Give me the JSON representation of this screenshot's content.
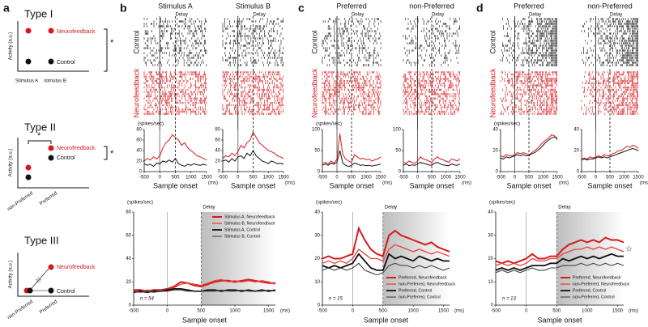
{
  "panel_labels": [
    "a",
    "b",
    "c",
    "d"
  ],
  "schematics": [
    {
      "title": "Type I",
      "y_label": "Activity (a.u.)",
      "x_labels": [
        "Stimulus A",
        "stimulus B"
      ],
      "labels": [
        "Neurofeedback",
        "Control"
      ],
      "marks": [
        "*"
      ]
    },
    {
      "title": "Type II",
      "y_label": "Activity (a.u.)",
      "x_labels": [
        "non-Preferred",
        "Preferred"
      ],
      "labels": [
        "Neurofeedback",
        "Control"
      ],
      "marks": [
        "*",
        "*"
      ]
    },
    {
      "title": "Type III",
      "y_label": "Activity (a.u.)",
      "x_labels": [
        "non-Preferred",
        "Preferred"
      ],
      "labels": [
        "Neurofeedback",
        "Control"
      ],
      "marks": [
        "☆"
      ]
    }
  ],
  "rasters": [
    {
      "columns": [
        "Stimulus A",
        "Stimulus B"
      ],
      "epoch": "Delay",
      "rows": [
        "Control",
        "Neurofeedback"
      ]
    },
    {
      "columns": [
        "Preferred",
        "non-Preferred"
      ],
      "epoch": "Delay",
      "rows": [
        "Control",
        "Neurofeedback"
      ]
    },
    {
      "columns": [
        "Preferred",
        "non-Preferred"
      ],
      "epoch": "Delay",
      "rows": [
        "Control",
        "Neurofeedback"
      ]
    }
  ],
  "chart_data": [
    {
      "type": "line",
      "y_label": "(spikes/sec)",
      "x_label": "Sample onset",
      "x_unit": "(ms)",
      "x": [
        -500,
        -400,
        -300,
        -200,
        -100,
        0,
        100,
        200,
        300,
        400,
        500,
        600,
        700,
        800,
        900,
        1000,
        1100,
        1200,
        1300,
        1400,
        1500
      ],
      "xlim": [
        -500,
        1500
      ],
      "xticks": [
        -500,
        0,
        500,
        1000,
        1500
      ],
      "ylim": [
        0,
        80
      ],
      "yticks": [
        0,
        20,
        40,
        60,
        80
      ],
      "series": [
        {
          "color": "#d7191c",
          "values": [
            20,
            25,
            22,
            28,
            24,
            30,
            45,
            55,
            60,
            70,
            65,
            60,
            50,
            55,
            45,
            40,
            35,
            30,
            28,
            25,
            22
          ]
        },
        {
          "color": "#111111",
          "values": [
            15,
            12,
            14,
            10,
            16,
            15,
            20,
            18,
            22,
            18,
            25,
            15,
            12,
            10,
            14,
            12,
            15,
            13,
            12,
            14,
            12
          ]
        }
      ]
    },
    {
      "type": "line",
      "x_label": "Sample onset",
      "x_unit": "(ms)",
      "x": [
        -500,
        -400,
        -300,
        -200,
        -100,
        0,
        100,
        200,
        300,
        400,
        500,
        600,
        700,
        800,
        900,
        1000,
        1100,
        1200,
        1300,
        1400,
        1500
      ],
      "xlim": [
        -500,
        1500
      ],
      "xticks": [
        -500,
        0,
        500,
        1000,
        1500
      ],
      "ylim": [
        0,
        80
      ],
      "yticks": [
        0,
        20,
        40,
        60,
        80
      ],
      "series": [
        {
          "color": "#d7191c",
          "values": [
            25,
            30,
            28,
            35,
            30,
            38,
            50,
            45,
            55,
            60,
            75,
            65,
            55,
            50,
            45,
            40,
            38,
            35,
            30,
            28,
            25
          ]
        },
        {
          "color": "#111111",
          "values": [
            20,
            22,
            18,
            25,
            20,
            28,
            30,
            25,
            35,
            30,
            40,
            30,
            25,
            20,
            18,
            15,
            20,
            18,
            15,
            16,
            14
          ]
        }
      ]
    },
    {
      "type": "line",
      "y_label": "(spikes/sec)",
      "x_label": "Sample onset",
      "x_unit": "(ms)",
      "x": [
        -500,
        -400,
        -300,
        -200,
        -100,
        0,
        100,
        200,
        300,
        400,
        500,
        600,
        700,
        800,
        900,
        1000,
        1100,
        1200,
        1300,
        1400,
        1500
      ],
      "xlim": [
        -500,
        1500
      ],
      "xticks": [
        -500,
        0,
        500,
        1000,
        1500
      ],
      "ylim": [
        0,
        100
      ],
      "yticks": [
        0,
        50,
        100
      ],
      "series": [
        {
          "color": "#d7191c",
          "values": [
            20,
            22,
            18,
            25,
            20,
            30,
            90,
            40,
            30,
            25,
            22,
            40,
            35,
            30,
            32,
            28,
            30,
            25,
            28,
            30,
            35
          ]
        },
        {
          "color": "#111111",
          "values": [
            15,
            18,
            15,
            20,
            18,
            22,
            50,
            20,
            15,
            12,
            15,
            20,
            18,
            15,
            16,
            14,
            15,
            13,
            15,
            16,
            18
          ]
        }
      ]
    },
    {
      "type": "line",
      "x_label": "Sample onset",
      "x_unit": "(ms)",
      "x": [
        -500,
        -400,
        -300,
        -200,
        -100,
        0,
        100,
        200,
        300,
        400,
        500,
        600,
        700,
        800,
        900,
        1000,
        1100,
        1200,
        1300,
        1400,
        1500
      ],
      "xlim": [
        -500,
        1500
      ],
      "xticks": [
        -500,
        0,
        500,
        1000,
        1500
      ],
      "ylim": [
        0,
        100
      ],
      "yticks": [
        0,
        50,
        100
      ],
      "series": [
        {
          "color": "#d7191c",
          "values": [
            22,
            20,
            25,
            22,
            20,
            25,
            35,
            30,
            28,
            25,
            22,
            30,
            35,
            30,
            28,
            25,
            22,
            30,
            28,
            25,
            30
          ]
        },
        {
          "color": "#111111",
          "values": [
            15,
            18,
            14,
            16,
            15,
            18,
            22,
            20,
            18,
            16,
            15,
            20,
            22,
            18,
            16,
            15,
            14,
            18,
            16,
            15,
            18
          ]
        }
      ]
    },
    {
      "type": "line",
      "y_label": "(spikes/sec)",
      "x_label": "Sample onset",
      "x_unit": "(ms)",
      "x": [
        -500,
        -400,
        -300,
        -200,
        -100,
        0,
        100,
        200,
        300,
        400,
        500,
        600,
        700,
        800,
        900,
        1000,
        1100,
        1200,
        1300,
        1400,
        1500
      ],
      "xlim": [
        -500,
        1500
      ],
      "xticks": [
        -500,
        0,
        500,
        1000,
        1500
      ],
      "ylim": [
        0,
        40
      ],
      "yticks": [
        0,
        20,
        40
      ],
      "series": [
        {
          "color": "#d7191c",
          "values": [
            15,
            14,
            16,
            15,
            15,
            16,
            18,
            17,
            18,
            17,
            16,
            18,
            20,
            22,
            25,
            28,
            30,
            32,
            35,
            34,
            30
          ]
        },
        {
          "color": "#111111",
          "values": [
            13,
            12,
            14,
            13,
            14,
            15,
            16,
            15,
            16,
            15,
            15,
            17,
            18,
            20,
            22,
            25,
            28,
            30,
            32,
            33,
            32
          ]
        }
      ]
    },
    {
      "type": "line",
      "x_label": "Sample onset",
      "x_unit": "(ms)",
      "x": [
        -500,
        -400,
        -300,
        -200,
        -100,
        0,
        100,
        200,
        300,
        400,
        500,
        600,
        700,
        800,
        900,
        1000,
        1100,
        1200,
        1300,
        1400,
        1500
      ],
      "xlim": [
        -500,
        1500
      ],
      "xticks": [
        -500,
        0,
        500,
        1000,
        1500
      ],
      "ylim": [
        0,
        40
      ],
      "yticks": [
        0,
        20,
        40
      ],
      "series": [
        {
          "color": "#d7191c",
          "values": [
            12,
            13,
            12,
            14,
            13,
            14,
            15,
            14,
            16,
            15,
            15,
            17,
            18,
            20,
            20,
            22,
            24,
            23,
            25,
            24,
            22
          ]
        },
        {
          "color": "#111111",
          "values": [
            11,
            12,
            11,
            12,
            12,
            13,
            14,
            13,
            14,
            13,
            14,
            15,
            16,
            17,
            18,
            19,
            20,
            21,
            22,
            21,
            20
          ]
        }
      ]
    },
    {
      "type": "line",
      "y_label": "(spikes/sec)",
      "x_label": "Sample onset",
      "x_unit": "(ms)",
      "legend": "upper right",
      "annotations": {
        "epoch": "Delay",
        "n": "n = 54"
      },
      "x": [
        -500,
        -400,
        -300,
        -200,
        -100,
        0,
        100,
        200,
        300,
        400,
        500,
        600,
        700,
        800,
        900,
        1000,
        1100,
        1200,
        1300,
        1400,
        1500,
        1600
      ],
      "xlim": [
        -500,
        1600
      ],
      "xticks": [
        -500,
        0,
        500,
        1000,
        1500
      ],
      "ylim": [
        0,
        80
      ],
      "yticks": [
        0,
        20,
        40,
        60,
        80
      ],
      "series": [
        {
          "name": "Stimulus A, Neurofeedback",
          "color": "#d7191c",
          "values": [
            13,
            13,
            12,
            13,
            13,
            14,
            16,
            20,
            19,
            17,
            16,
            18,
            20,
            21,
            21,
            20,
            21,
            22,
            21,
            20,
            19,
            19
          ]
        },
        {
          "name": "Stimulus B, Neurofeedback",
          "color": "#e8403c",
          "values": [
            12,
            12,
            13,
            12,
            13,
            13,
            15,
            18,
            19,
            18,
            17,
            19,
            21,
            22,
            20,
            21,
            20,
            21,
            20,
            21,
            20,
            18
          ]
        },
        {
          "name": "Stimulus A, Control",
          "color": "#111111",
          "values": [
            11,
            12,
            11,
            12,
            12,
            13,
            14,
            14,
            13,
            12,
            12,
            13,
            13,
            12,
            13,
            13,
            12,
            13,
            12,
            13,
            12,
            13
          ]
        },
        {
          "name": "Stimulus B, Control",
          "color": "#444444",
          "values": [
            12,
            11,
            12,
            11,
            12,
            12,
            13,
            13,
            12,
            12,
            12,
            12,
            12,
            13,
            12,
            12,
            13,
            12,
            12,
            12,
            13,
            12
          ]
        }
      ]
    },
    {
      "type": "line",
      "y_label": "(spikes/sec)",
      "x_label": "Sample onset",
      "x_unit": "(ms)",
      "legend": "lower right",
      "annotations": {
        "epoch": "Delay",
        "n": "n = 15"
      },
      "x": [
        -500,
        -400,
        -300,
        -200,
        -100,
        0,
        100,
        200,
        300,
        400,
        500,
        600,
        700,
        800,
        900,
        1000,
        1100,
        1200,
        1300,
        1400,
        1500,
        1600
      ],
      "xlim": [
        -500,
        1600
      ],
      "xticks": [
        -500,
        0,
        500,
        1000,
        1500
      ],
      "ylim": [
        0,
        40
      ],
      "yticks": [
        0,
        10,
        20,
        30,
        40
      ],
      "series": [
        {
          "name": "Preferred, Neurofeedback",
          "color": "#d7191c",
          "values": [
            20,
            21,
            20,
            20,
            21,
            22,
            33,
            28,
            24,
            22,
            21,
            30,
            32,
            30,
            29,
            28,
            27,
            26,
            27,
            25,
            24,
            23
          ]
        },
        {
          "name": "non-Preferred, Neurofeedback",
          "color": "#e8403c",
          "values": [
            18,
            19,
            18,
            19,
            18,
            20,
            24,
            22,
            20,
            20,
            19,
            24,
            26,
            25,
            24,
            23,
            24,
            23,
            22,
            23,
            22,
            21
          ]
        },
        {
          "name": "Preferred, Control",
          "color": "#111111",
          "values": [
            17,
            16,
            17,
            16,
            17,
            18,
            22,
            19,
            16,
            15,
            15,
            22,
            20,
            21,
            20,
            19,
            21,
            20,
            19,
            20,
            19,
            19
          ]
        },
        {
          "name": "non-Preferred, Control",
          "color": "#444444",
          "values": [
            15,
            16,
            15,
            16,
            15,
            16,
            18,
            15,
            14,
            13,
            14,
            17,
            18,
            17,
            17,
            16,
            17,
            16,
            17,
            16,
            15,
            16
          ]
        }
      ]
    },
    {
      "type": "line",
      "y_label": "(spikes/sec)",
      "x_label": "Sample onset",
      "x_unit": "(ms)",
      "legend": "lower right",
      "annotations": {
        "epoch": "Delay",
        "n": "n = 13",
        "star": "☆"
      },
      "x": [
        -500,
        -400,
        -300,
        -200,
        -100,
        0,
        100,
        200,
        300,
        400,
        500,
        600,
        700,
        800,
        900,
        1000,
        1100,
        1200,
        1300,
        1400,
        1500,
        1600
      ],
      "xlim": [
        -500,
        1600
      ],
      "xticks": [
        -500,
        0,
        500,
        1000,
        1500
      ],
      "ylim": [
        0,
        40
      ],
      "yticks": [
        0,
        10,
        20,
        30,
        40
      ],
      "series": [
        {
          "name": "Preferred, Neurofeedback",
          "color": "#d7191c",
          "values": [
            19,
            18,
            19,
            18,
            19,
            20,
            22,
            20,
            20,
            21,
            21,
            24,
            26,
            27,
            28,
            27,
            28,
            27,
            29,
            28,
            28,
            27
          ]
        },
        {
          "name": "non-Preferred, Neurofeedback",
          "color": "#e8403c",
          "values": [
            17,
            18,
            17,
            18,
            17,
            18,
            20,
            19,
            19,
            20,
            20,
            22,
            23,
            24,
            24,
            25,
            24,
            25,
            24,
            25,
            24,
            23
          ]
        },
        {
          "name": "Preferred, Control",
          "color": "#111111",
          "values": [
            15,
            16,
            15,
            16,
            15,
            16,
            17,
            17,
            17,
            18,
            18,
            20,
            19,
            20,
            21,
            20,
            21,
            20,
            21,
            22,
            21,
            21
          ]
        },
        {
          "name": "non-Preferred, Control",
          "color": "#444444",
          "values": [
            14,
            15,
            14,
            15,
            14,
            15,
            16,
            15,
            15,
            16,
            16,
            17,
            17,
            17,
            18,
            17,
            18,
            17,
            18,
            17,
            18,
            17
          ]
        }
      ]
    }
  ]
}
